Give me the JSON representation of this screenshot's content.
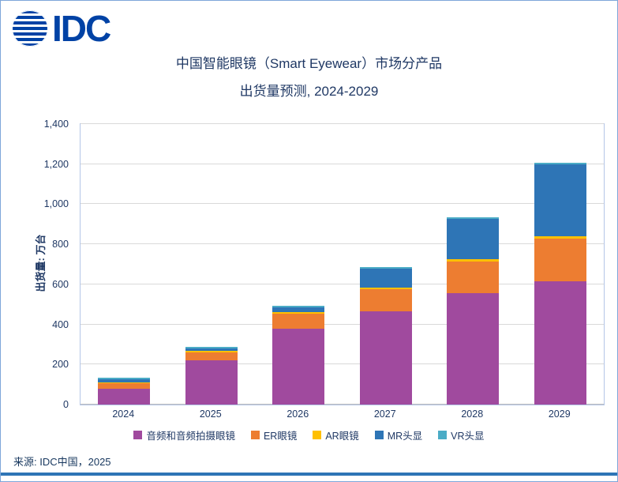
{
  "logo": {
    "text": "IDC"
  },
  "title": {
    "line1": "中国智能眼镜（Smart Eyewear）市场分产品",
    "line2": "出货量预测, 2024-2029"
  },
  "source": "来源: IDC中国，2025",
  "chart_data": {
    "type": "bar",
    "stacked": true,
    "title": "中国智能眼镜（Smart Eyewear）市场分产品出货量预测, 2024-2029",
    "xlabel": "",
    "ylabel": "出货量: 万台",
    "ylim": [
      0,
      1400
    ],
    "grid": true,
    "legend_position": "bottom",
    "categories": [
      "2024",
      "2025",
      "2026",
      "2027",
      "2028",
      "2029"
    ],
    "series": [
      {
        "name": "音频和音频拍摄眼镜",
        "color": "#A04A9E",
        "values": [
          80,
          220,
          380,
          465,
          555,
          615
        ]
      },
      {
        "name": "ER眼镜",
        "color": "#ED7D31",
        "values": [
          25,
          42,
          75,
          110,
          160,
          212
        ]
      },
      {
        "name": "AR眼镜",
        "color": "#FFC000",
        "values": [
          6,
          6,
          8,
          10,
          12,
          15
        ]
      },
      {
        "name": "MR头显",
        "color": "#2E75B6",
        "values": [
          15,
          13,
          22,
          95,
          200,
          358
        ]
      },
      {
        "name": "VR头显",
        "color": "#4BACC6",
        "values": [
          9,
          5,
          7,
          5,
          8,
          5
        ]
      }
    ],
    "yticks": [
      {
        "value": 0,
        "label": "0"
      },
      {
        "value": 200,
        "label": "200"
      },
      {
        "value": 400,
        "label": "400"
      },
      {
        "value": 600,
        "label": "600"
      },
      {
        "value": 800,
        "label": "800"
      },
      {
        "value": 1000,
        "label": "1,000"
      },
      {
        "value": 1200,
        "label": "1,200"
      },
      {
        "value": 1400,
        "label": "1,400"
      }
    ]
  }
}
